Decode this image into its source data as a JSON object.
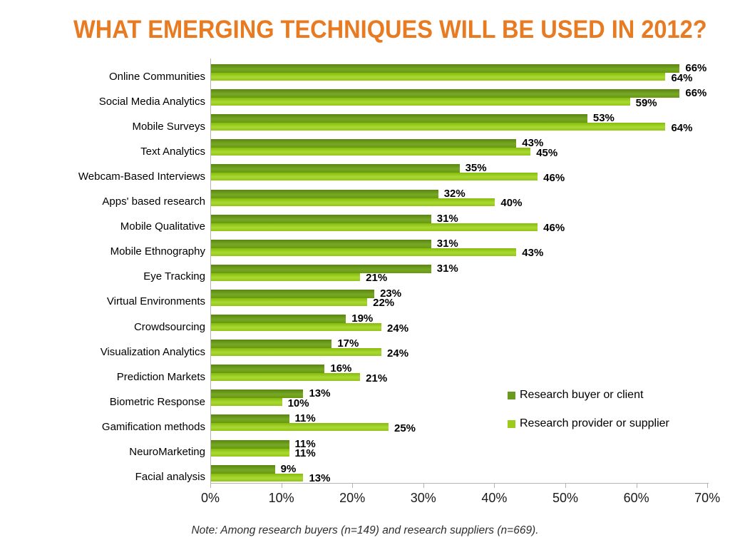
{
  "chart_data": {
    "type": "bar",
    "orientation": "horizontal",
    "title": "WHAT EMERGING TECHNIQUES WILL BE USED IN 2012?",
    "title_color": "#E87B22",
    "categories": [
      "Online Communities",
      "Social Media Analytics",
      "Mobile Surveys",
      "Text Analytics",
      "Webcam-Based Interviews",
      "Apps' based research",
      "Mobile Qualitative",
      "Mobile Ethnography",
      "Eye Tracking",
      "Virtual Environments",
      "Crowdsourcing",
      "Visualization Analytics",
      "Prediction Markets",
      "Biometric Response",
      "Gamification methods",
      "NeuroMarketing",
      "Facial analysis"
    ],
    "series": [
      {
        "name": "Research buyer or client",
        "color": "#6B9B1E",
        "gradient": [
          "#59850F",
          "#77A726",
          "#68990F"
        ],
        "values": [
          66,
          66,
          53,
          43,
          35,
          32,
          31,
          31,
          31,
          23,
          19,
          17,
          16,
          13,
          11,
          11,
          9
        ]
      },
      {
        "name": "Research provider or supplier",
        "color": "#9CCC1A",
        "gradient": [
          "#84BB0C",
          "#ABD934",
          "#93C517"
        ],
        "values": [
          64,
          59,
          64,
          45,
          46,
          40,
          46,
          43,
          21,
          22,
          24,
          24,
          21,
          10,
          25,
          11,
          13
        ]
      }
    ],
    "value_suffix": "%",
    "x_ticks": [
      "0%",
      "10%",
      "20%",
      "30%",
      "40%",
      "50%",
      "60%",
      "70%"
    ],
    "xlim": [
      0,
      70
    ],
    "grid": false,
    "legend_position": "right-middle",
    "note": "Note: Among research buyers (n=149) and research suppliers (n=669)."
  }
}
